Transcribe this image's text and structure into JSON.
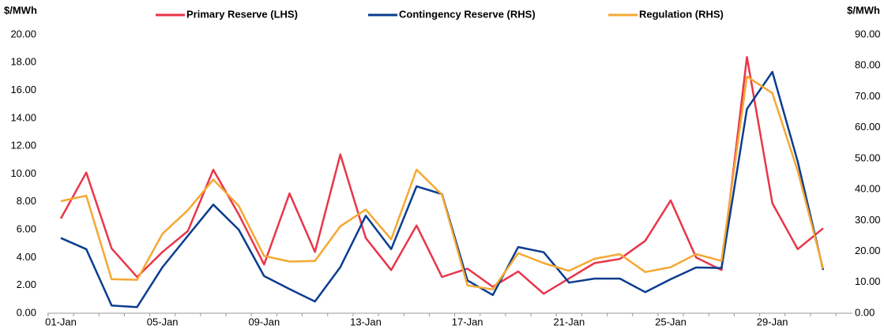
{
  "chart_data": {
    "type": "line",
    "y_label": "$/MWh",
    "y2_label": "$/MWh",
    "categories": [
      "01-Jan",
      null,
      null,
      null,
      "05-Jan",
      null,
      null,
      null,
      "09-Jan",
      null,
      null,
      null,
      "13-Jan",
      null,
      null,
      null,
      "17-Jan",
      null,
      null,
      null,
      "21-Jan",
      null,
      null,
      null,
      "25-Jan",
      null,
      null,
      null,
      "29-Jan",
      null,
      null
    ],
    "series": [
      {
        "name": "Primary Reserve (LHS)",
        "color": "#e8364a",
        "axis": "y",
        "values": [
          6.8,
          10.1,
          4.65,
          2.6,
          4.4,
          5.9,
          10.3,
          7.1,
          3.5,
          8.6,
          4.4,
          11.4,
          5.4,
          3.1,
          6.3,
          2.6,
          3.2,
          1.9,
          3.0,
          1.4,
          2.5,
          3.6,
          3.9,
          5.2,
          8.1,
          4.0,
          3.1,
          18.4,
          7.9,
          4.6,
          6.1
        ]
      },
      {
        "name": "Contingency Reserve (RHS)",
        "color": "#0a3d8f",
        "axis": "y2",
        "values": [
          24.3,
          20.7,
          2.5,
          2.0,
          14.9,
          25.0,
          35.1,
          27.0,
          12.0,
          7.8,
          3.8,
          14.9,
          31.5,
          20.7,
          41.0,
          38.5,
          10.6,
          5.9,
          21.4,
          19.7,
          9.9,
          11.2,
          11.2,
          6.8,
          11.0,
          14.8,
          14.6,
          66.0,
          78.0,
          49.0,
          14.0
        ]
      },
      {
        "name": "Regulation (RHS)",
        "color": "#f5a833",
        "axis": "y2",
        "values": [
          36.2,
          38.0,
          11.0,
          10.8,
          25.7,
          33.3,
          43.2,
          34.7,
          18.5,
          16.7,
          16.9,
          28.1,
          33.5,
          23.9,
          46.4,
          38.3,
          9.0,
          7.7,
          19.4,
          16.2,
          13.7,
          17.6,
          19.1,
          13.3,
          14.9,
          19.1,
          16.9,
          76.5,
          71.1,
          46.0,
          14.4
        ]
      }
    ],
    "ylim": [
      0,
      20
    ],
    "yticks": [
      {
        "value": 0,
        "label": "0.00"
      },
      {
        "value": 2,
        "label": "2.00"
      },
      {
        "value": 4,
        "label": "4.00"
      },
      {
        "value": 6,
        "label": "6.00"
      },
      {
        "value": 8,
        "label": "8.00"
      },
      {
        "value": 10,
        "label": "10.00"
      },
      {
        "value": 12,
        "label": "12.00"
      },
      {
        "value": 14,
        "label": "14.00"
      },
      {
        "value": 16,
        "label": "16.00"
      },
      {
        "value": 18,
        "label": "18.00"
      },
      {
        "value": 20,
        "label": "20.00"
      }
    ],
    "y2lim": [
      0,
      90
    ],
    "y2ticks": [
      {
        "value": 0,
        "label": "0.00"
      },
      {
        "value": 10,
        "label": "10.00"
      },
      {
        "value": 20,
        "label": "20.00"
      },
      {
        "value": 30,
        "label": "30.00"
      },
      {
        "value": 40,
        "label": "40.00"
      },
      {
        "value": 50,
        "label": "50.00"
      },
      {
        "value": 60,
        "label": "60.00"
      },
      {
        "value": 70,
        "label": "70.00"
      },
      {
        "value": 80,
        "label": "80.00"
      },
      {
        "value": 90,
        "label": "90.00"
      }
    ],
    "legend": "top",
    "grid": false
  }
}
